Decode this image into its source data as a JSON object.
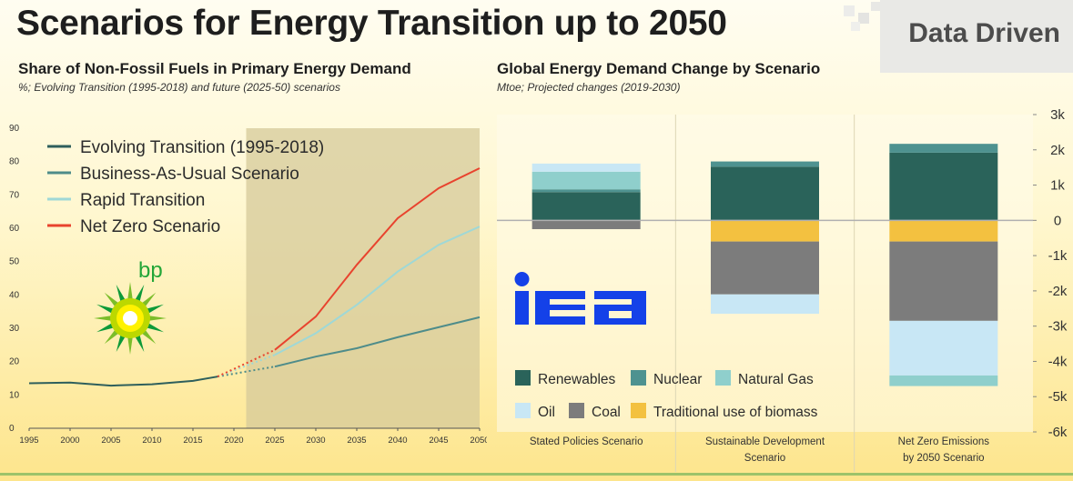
{
  "page": {
    "title": "Scenarios for Energy Transition up to 2050",
    "brand": "Data Driven"
  },
  "left": {
    "title": "Share of Non-Fossil Fuels in Primary Energy Demand",
    "note": "%; Evolving Transition (1995-2018) and future (2025-50) scenarios",
    "logo_text": "bp"
  },
  "right": {
    "title": "Global Energy Demand Change by Scenario",
    "note": "Mtoe; Projected changes (2019-2030)",
    "logo_text": "iea"
  },
  "chart_data": [
    {
      "type": "line",
      "title": "Share of Non-Fossil Fuels in Primary Energy Demand",
      "subtitle": "%; Evolving Transition (1995-2018) and future (2025-50) scenarios",
      "ylim": [
        0,
        90
      ],
      "xlim": [
        1995,
        2050
      ],
      "yticks": [
        0,
        10,
        20,
        30,
        40,
        50,
        60,
        70,
        80,
        90
      ],
      "xticks": [
        1995,
        2000,
        2005,
        2010,
        2015,
        2020,
        2025,
        2030,
        2035,
        2040,
        2045,
        2050
      ],
      "shaded_region": [
        2021.5,
        2050
      ],
      "legend_position": "top-left",
      "grid": false,
      "series": [
        {
          "name": "Evolving Transition (1995-2018)",
          "color": "#2e5f5c",
          "x": [
            1995,
            2000,
            2005,
            2010,
            2015,
            2018
          ],
          "y": [
            13.5,
            13.7,
            12.8,
            13.2,
            14.2,
            15.5
          ]
        },
        {
          "name": "Business-As-Usual Scenario",
          "color": "#4e8c8a",
          "x": [
            2025,
            2030,
            2035,
            2040,
            2045,
            2050
          ],
          "y": [
            18.5,
            21.5,
            24,
            27.3,
            30.3,
            33.3
          ]
        },
        {
          "name": "Rapid Transition",
          "color": "#9fd8d6",
          "x": [
            2025,
            2030,
            2035,
            2040,
            2045,
            2050
          ],
          "y": [
            22,
            28.5,
            37,
            47,
            55,
            60.5
          ]
        },
        {
          "name": "Net Zero Scenario",
          "color": "#e8432e",
          "x": [
            2025,
            2030,
            2035,
            2040,
            2045,
            2050
          ],
          "y": [
            23.5,
            33.5,
            49,
            63,
            72,
            78
          ]
        }
      ],
      "dotted_connectors": [
        {
          "from": [
            2018,
            15.5
          ],
          "to": [
            2025,
            18.5
          ],
          "color": "#4e8c8a"
        },
        {
          "from": [
            2018,
            15.5
          ],
          "to": [
            2025,
            22
          ],
          "color": "#9fd8d6"
        },
        {
          "from": [
            2018,
            15.5
          ],
          "to": [
            2025,
            23.5
          ],
          "color": "#e8432e"
        }
      ]
    },
    {
      "type": "bar",
      "stacked": true,
      "title": "Global Energy Demand Change by Scenario",
      "subtitle": "Mtoe; Projected changes (2019-2030)",
      "ylim": [
        -6000,
        3000
      ],
      "yaxis_position": "right",
      "ytick_labels": [
        "3k",
        "2k",
        "1k",
        "0",
        "-1k",
        "-2k",
        "-3k",
        "-4k",
        "-5k",
        "-6k"
      ],
      "ytick_values": [
        3000,
        2000,
        1000,
        0,
        -1000,
        -2000,
        -3000,
        -4000,
        -5000,
        -6000
      ],
      "categories": [
        [
          "Stated Policies Scenario"
        ],
        [
          "Sustainable Development",
          "Scenario"
        ],
        [
          "Net Zero Emissions",
          "by 2050 Scenario"
        ]
      ],
      "legend_position": "bottom-left",
      "series": [
        {
          "name": "Renewables",
          "color": "#2a635a",
          "values": [
            800,
            1520,
            1920
          ]
        },
        {
          "name": "Nuclear",
          "color": "#4e9290",
          "values": [
            80,
            150,
            250
          ]
        },
        {
          "name": "Natural Gas",
          "color": "#8fcfcc",
          "values": [
            500,
            0,
            0
          ]
        },
        {
          "name": "Oil",
          "color": "#c8e7f5",
          "values": [
            230,
            -550,
            -1550
          ]
        },
        {
          "name": "Coal",
          "color": "#7c7c7c",
          "values": [
            -250,
            -1500,
            -2250
          ]
        },
        {
          "name": "Traditional use of biomass",
          "color": "#f3c140",
          "values": [
            0,
            -600,
            -600
          ]
        }
      ],
      "extra_segments": [
        {
          "category_index": 2,
          "color": "#8fcfcc",
          "value": -300
        }
      ],
      "stack_order_negative": [
        "Traditional use of biomass",
        "Coal",
        "Oil",
        "Natural Gas"
      ]
    }
  ]
}
